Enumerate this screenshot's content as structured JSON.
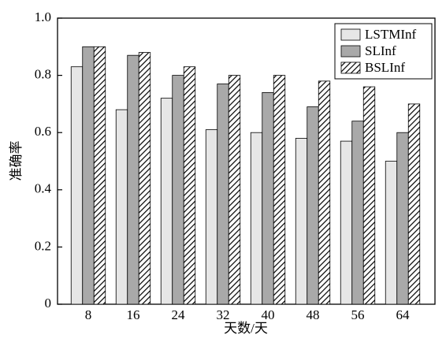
{
  "chart_data": {
    "type": "bar",
    "xlabel": "天数/天",
    "ylabel": "准确率",
    "categories": [
      "8",
      "16",
      "24",
      "32",
      "40",
      "48",
      "56",
      "64"
    ],
    "series": [
      {
        "name": "LSTMInf",
        "color": "#e6e6e6",
        "values": [
          0.83,
          0.68,
          0.72,
          0.61,
          0.6,
          0.58,
          0.57,
          0.5
        ]
      },
      {
        "name": "SLInf",
        "color": "#a9a9a9",
        "values": [
          0.9,
          0.87,
          0.8,
          0.77,
          0.74,
          0.69,
          0.64,
          0.6
        ]
      },
      {
        "name": "BSLInf",
        "color": "#000000",
        "pattern": "hatch",
        "values": [
          0.9,
          0.88,
          0.83,
          0.8,
          0.8,
          0.78,
          0.76,
          0.7
        ]
      }
    ],
    "ylim": [
      0,
      1
    ],
    "yticks": [
      0,
      0.2,
      0.4,
      0.6,
      0.8,
      {
        "value": 1,
        "label": "1.0"
      }
    ],
    "legend": "upper right"
  }
}
